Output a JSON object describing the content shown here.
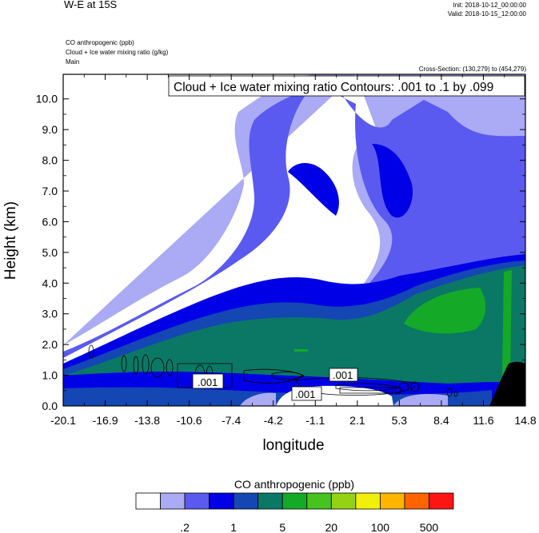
{
  "header": {
    "title": "W-E at 15S",
    "init": "Init: 2018-10-12_00:00:00",
    "valid": "Valid: 2018-10-15_12:00:00",
    "field1": "CO anthropogenic   (ppb)",
    "field2": "Cloud + Ice water mixing ratio   (g/kg)",
    "domain": "Main",
    "cross_section": "Cross-Section: (130,279) to (454,279)"
  },
  "chart_data": {
    "type": "heatmap",
    "title": "W-E at 15S",
    "contour_label": "Cloud + Ice water mixing ratio Contours: .001 to .1 by .099",
    "contour_values": [
      ".001",
      ".001",
      ".001"
    ],
    "xlabel": "longitude",
    "ylabel": "Height (km)",
    "xlim": [
      -20.1,
      14.8
    ],
    "ylim": [
      0,
      10.8
    ],
    "x_ticks": [
      "-20.1",
      "-16.9",
      "-13.8",
      "-10.6",
      "-7.4",
      "-4.2",
      "-1.1",
      "2.1",
      "5.3",
      "8.4",
      "11.6",
      "14.8"
    ],
    "y_ticks": [
      "0.0",
      "1.0",
      "2.0",
      "3.0",
      "4.0",
      "5.0",
      "6.0",
      "7.0",
      "8.0",
      "9.0",
      "10.0"
    ],
    "colorbar": {
      "title": "CO anthropogenic  (ppb)",
      "colors": [
        "#ffffff",
        "#aaaaf5",
        "#5a5af0",
        "#0000e6",
        "#1446b4",
        "#0a7864",
        "#14aa28",
        "#46c31e",
        "#96d214",
        "#f0f00a",
        "#ffb400",
        "#ff6400",
        "#ff1414"
      ],
      "labels": [
        "0.2",
        "1",
        "5",
        "20",
        "100",
        "500"
      ],
      "label_text": [
        ".2",
        "1",
        "5",
        "20",
        "100",
        "500"
      ]
    }
  }
}
